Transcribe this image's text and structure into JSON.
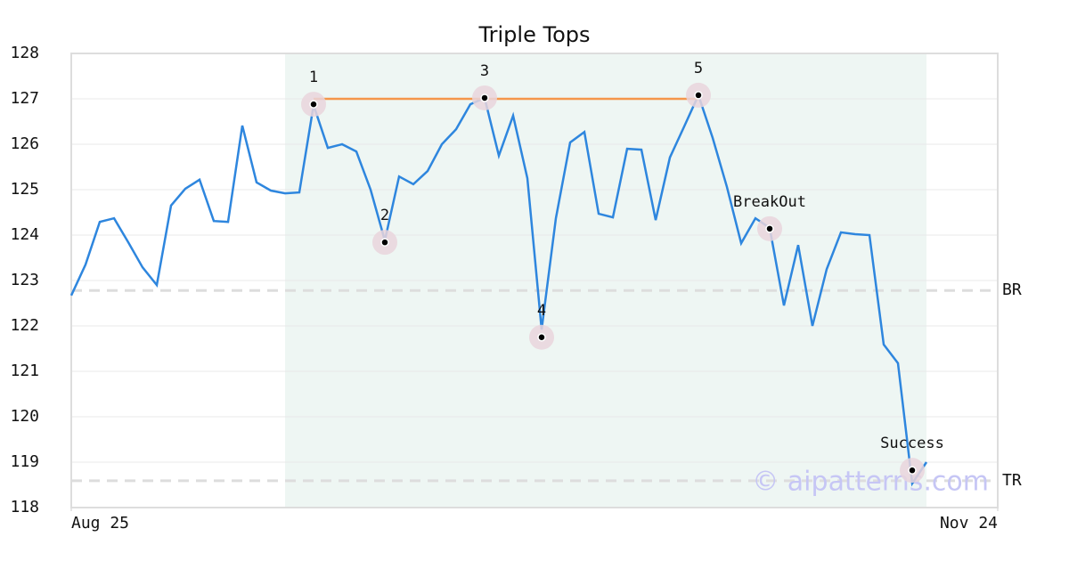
{
  "chart_data": {
    "type": "line",
    "title": "Triple Tops",
    "x": [
      0,
      1,
      2,
      3,
      4,
      5,
      6,
      7,
      8,
      9,
      10,
      11,
      12,
      13,
      14,
      15,
      16,
      17,
      18,
      19,
      20,
      21,
      22,
      23,
      24,
      25,
      26,
      27,
      28,
      29,
      30,
      31,
      32,
      33,
      34,
      35,
      36,
      37,
      38,
      39,
      40,
      41,
      42,
      43,
      44,
      45,
      46,
      47,
      48,
      49,
      50,
      51,
      52,
      53,
      54,
      55,
      56,
      57,
      58,
      59,
      60
    ],
    "series": [
      {
        "color": "#2e86de",
        "values": [
          122.67,
          123.35,
          124.29,
          124.37,
          123.84,
          123.29,
          122.9,
          124.65,
          125.02,
          125.22,
          124.31,
          124.29,
          126.41,
          125.16,
          124.98,
          124.92,
          124.94,
          126.86,
          125.92,
          126.0,
          125.84,
          125.0,
          123.88,
          125.29,
          125.12,
          125.41,
          126.0,
          126.33,
          126.88,
          127.02,
          125.75,
          126.63,
          125.25,
          121.92,
          124.37,
          126.04,
          126.27,
          124.47,
          124.39,
          125.9,
          125.88,
          124.33,
          125.71,
          126.39,
          127.08,
          126.14,
          125.06,
          123.82,
          124.37,
          124.16,
          122.45,
          123.78,
          122.0,
          123.25,
          124.06,
          124.02,
          124.0,
          121.59,
          121.18,
          118.53,
          119.0
        ]
      }
    ],
    "markers": [
      {
        "label": "1",
        "x": 17,
        "value": 126.88
      },
      {
        "label": "2",
        "x": 22,
        "value": 123.84
      },
      {
        "label": "3",
        "x": 29,
        "value": 127.02
      },
      {
        "label": "4",
        "x": 33,
        "value": 121.75
      },
      {
        "label": "5",
        "x": 44,
        "value": 127.08
      },
      {
        "label": "BreakOut",
        "x": 49,
        "value": 124.14
      },
      {
        "label": "Success",
        "x": 59,
        "value": 118.82
      }
    ],
    "resistance": {
      "x": [
        17,
        44
      ],
      "values": [
        127.0,
        127.0
      ],
      "color": "#f5964a"
    },
    "levels": [
      {
        "label": "BR",
        "value": 122.78
      },
      {
        "label": "TR",
        "value": 118.59
      }
    ],
    "highlight": [
      15,
      60
    ],
    "xlim": [
      0,
      65
    ],
    "xticks": [
      {
        "value": 0,
        "label": "Aug 25"
      },
      {
        "value": 65,
        "label": "Nov 24"
      }
    ],
    "ylim": [
      118,
      128
    ],
    "yticks": [
      118,
      119,
      120,
      121,
      122,
      123,
      124,
      125,
      126,
      127,
      128
    ],
    "grid": true,
    "watermark": "© aipatterns.com"
  }
}
